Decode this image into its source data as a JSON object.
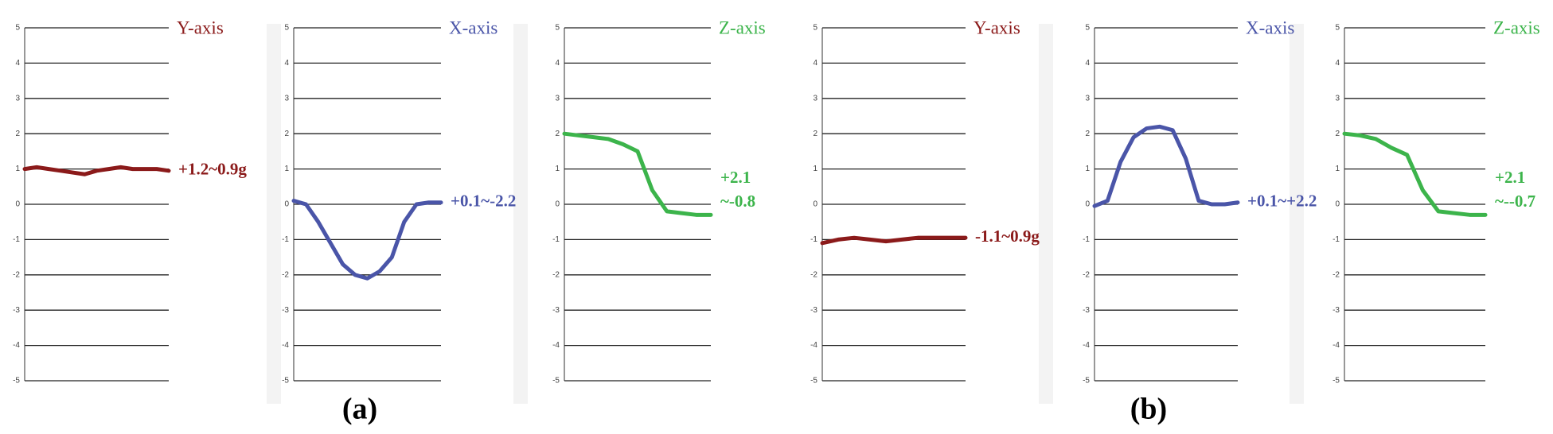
{
  "chart_data": [
    {
      "type": "line",
      "title": "Y-axis",
      "annotations": [
        "+1.2~0.9g"
      ],
      "color": "#8b1a1a",
      "categories": [
        null,
        null,
        null,
        null,
        null,
        null,
        null,
        null,
        null,
        null,
        null,
        null,
        null
      ],
      "values": [
        1.0,
        1.05,
        1.0,
        0.95,
        0.9,
        0.85,
        0.95,
        1.0,
        1.05,
        1.0,
        1.0,
        1.0,
        0.95
      ],
      "ylim": [
        -5,
        5
      ],
      "yticks": [
        -5,
        -4,
        -3,
        -2,
        -1,
        0,
        1,
        2,
        3,
        4,
        5
      ],
      "grid": true
    },
    {
      "type": "line",
      "title": "X-axis",
      "annotations": [
        "+0.1~-2.2"
      ],
      "color": "#4a55a8",
      "categories": [
        null,
        null,
        null,
        null,
        null,
        null,
        null,
        null,
        null,
        null,
        null,
        null,
        null
      ],
      "values": [
        0.1,
        0.0,
        -0.5,
        -1.1,
        -1.7,
        -2.0,
        -2.1,
        -1.9,
        -1.5,
        -0.5,
        0.0,
        0.05,
        0.05
      ],
      "ylim": [
        -5,
        5
      ],
      "yticks": [
        -5,
        -4,
        -3,
        -2,
        -1,
        0,
        1,
        2,
        3,
        4,
        5
      ],
      "grid": true
    },
    {
      "type": "line",
      "title": "Z-axis",
      "annotations": [
        "+2.1",
        "~-0.8"
      ],
      "color": "#3cb44b",
      "categories": [
        null,
        null,
        null,
        null,
        null,
        null,
        null,
        null,
        null,
        null,
        null
      ],
      "values": [
        2.0,
        1.95,
        1.9,
        1.85,
        1.7,
        1.5,
        0.4,
        -0.2,
        -0.25,
        -0.3,
        -0.3
      ],
      "ylim": [
        -5,
        5
      ],
      "yticks": [
        -5,
        -4,
        -3,
        -2,
        -1,
        0,
        1,
        2,
        3,
        4,
        5
      ],
      "grid": true
    },
    {
      "type": "line",
      "title": "Y-axis",
      "annotations": [
        "-1.1~0.9g"
      ],
      "color": "#8b1a1a",
      "categories": [
        null,
        null,
        null,
        null,
        null,
        null,
        null,
        null,
        null,
        null
      ],
      "values": [
        -1.1,
        -1.0,
        -0.95,
        -1.0,
        -1.05,
        -1.0,
        -0.95,
        -0.95,
        -0.95,
        -0.95
      ],
      "ylim": [
        -5,
        5
      ],
      "yticks": [
        -5,
        -4,
        -3,
        -2,
        -1,
        0,
        1,
        2,
        3,
        4,
        5
      ],
      "grid": true
    },
    {
      "type": "line",
      "title": "X-axis",
      "annotations": [
        "+0.1~+2.2"
      ],
      "color": "#4a55a8",
      "categories": [
        null,
        null,
        null,
        null,
        null,
        null,
        null,
        null,
        null,
        null,
        null,
        null
      ],
      "values": [
        -0.05,
        0.1,
        1.2,
        1.9,
        2.15,
        2.2,
        2.1,
        1.3,
        0.1,
        0.0,
        0.0,
        0.05
      ],
      "ylim": [
        -5,
        5
      ],
      "yticks": [
        -5,
        -4,
        -3,
        -2,
        -1,
        0,
        1,
        2,
        3,
        4,
        5
      ],
      "grid": true
    },
    {
      "type": "line",
      "title": "Z-axis",
      "annotations": [
        "+2.1",
        "~--0.7"
      ],
      "color": "#3cb44b",
      "categories": [
        null,
        null,
        null,
        null,
        null,
        null,
        null,
        null,
        null,
        null
      ],
      "values": [
        2.0,
        1.95,
        1.85,
        1.6,
        1.4,
        0.4,
        -0.2,
        -0.25,
        -0.3,
        -0.3
      ],
      "ylim": [
        -5,
        5
      ],
      "yticks": [
        -5,
        -4,
        -3,
        -2,
        -1,
        0,
        1,
        2,
        3,
        4,
        5
      ],
      "grid": true
    }
  ],
  "panel_labels": [
    "(a)",
    "(b)"
  ]
}
